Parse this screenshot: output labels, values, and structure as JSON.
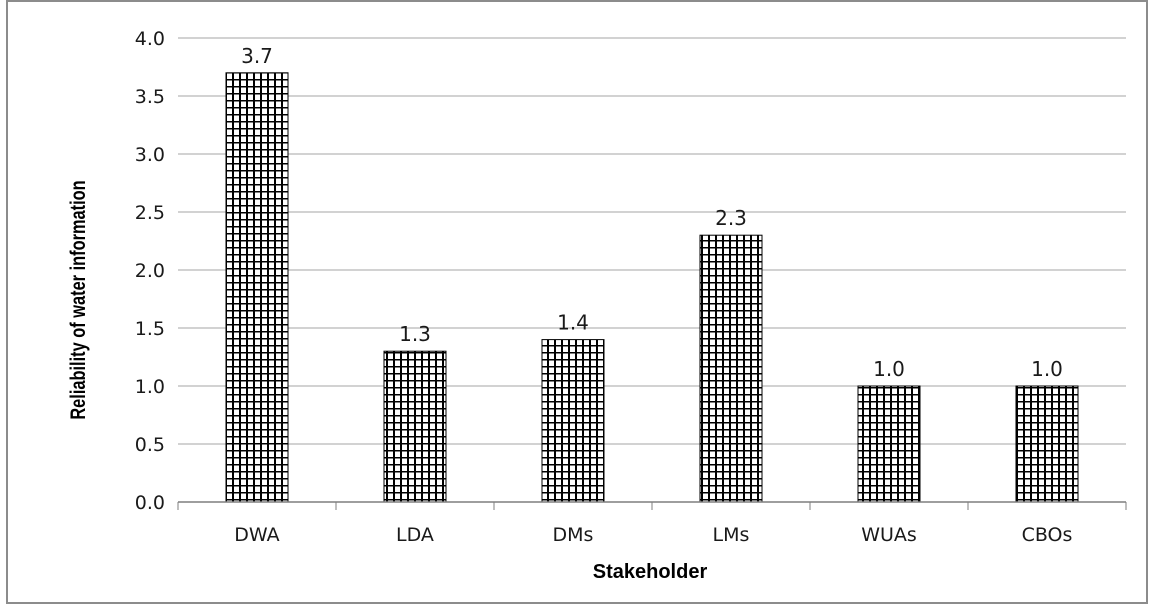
{
  "chart_data": {
    "type": "bar",
    "title": "",
    "xlabel": "Stakeholder",
    "ylabel": "Reliability of water information",
    "categories": [
      "DWA",
      "LDA",
      "DMs",
      "LMs",
      "WUAs",
      "CBOs"
    ],
    "values": [
      3.7,
      1.3,
      1.4,
      2.3,
      1.0,
      1.0
    ],
    "data_labels": [
      "3.7",
      "1.3",
      "1.4",
      "2.3",
      "1.0",
      "1.0"
    ],
    "ylim": [
      0,
      4.0
    ],
    "yticks": [
      "0.0",
      "0.5",
      "1.0",
      "1.5",
      "2.0",
      "2.5",
      "3.0",
      "3.5",
      "4.0"
    ],
    "grid": true,
    "legend": "none",
    "colors": {
      "bar_fill": "#ffffff",
      "bar_pattern": "#000000",
      "grid": "#a6a6a6",
      "axis": "#7f7f7f",
      "border": "#8c8c8c"
    }
  }
}
